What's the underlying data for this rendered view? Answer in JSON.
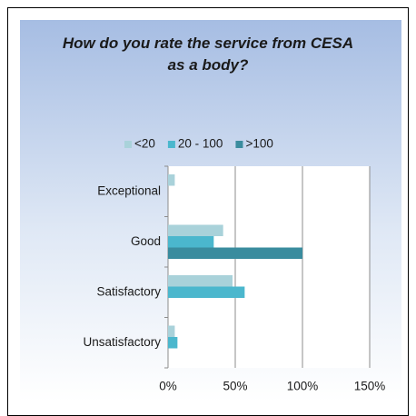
{
  "chart_data": {
    "type": "bar",
    "orientation": "horizontal",
    "title": "How do you rate the service from CESA as a body?",
    "categories": [
      "Exceptional",
      "Good",
      "Satisfactory",
      "Unsatisfactory"
    ],
    "series": [
      {
        "name": "<20",
        "color": "#a9d2da",
        "values": [
          5,
          41,
          48,
          5
        ]
      },
      {
        "name": "20 - 100",
        "color": "#4bb7cd",
        "values": [
          0,
          34,
          57,
          7
        ]
      },
      {
        "name": ">100",
        "color": "#3a8c9e",
        "values": [
          0,
          100,
          0,
          0
        ]
      }
    ],
    "xlim": [
      0,
      150
    ],
    "xticks": [
      {
        "value": 0,
        "label": "0%"
      },
      {
        "value": 50,
        "label": "50%"
      },
      {
        "value": 100,
        "label": "100%"
      },
      {
        "value": 150,
        "label": "150%"
      }
    ],
    "grid": true,
    "legend": "top"
  }
}
